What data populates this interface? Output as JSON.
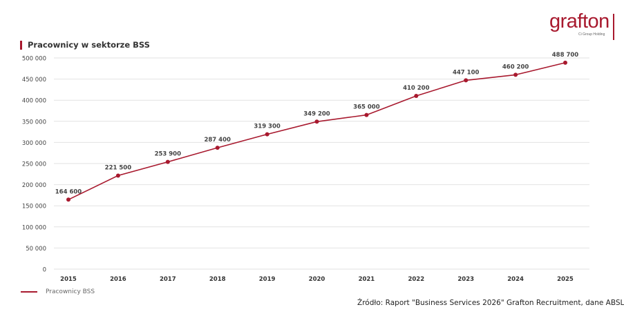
{
  "logo": {
    "name": "grafton",
    "subtitle": "Ci Group Holding"
  },
  "colors": {
    "accent": "#a8192e",
    "line": "#a8192e",
    "grid": "#e2e2e2",
    "text": "#333333"
  },
  "chart_data": {
    "type": "line",
    "title": "Pracownicy w sektorze BSS",
    "xlabel": "",
    "ylabel": "",
    "x": [
      "2015",
      "2016",
      "2017",
      "2018",
      "2019",
      "2020",
      "2021",
      "2022",
      "2023",
      "2024",
      "2025"
    ],
    "series": [
      {
        "name": "Pracownicy BSS",
        "values": [
          164600,
          221500,
          253900,
          287400,
          319300,
          349200,
          365000,
          410200,
          447100,
          460200,
          488700
        ],
        "labels": [
          "164 600",
          "221 500",
          "253 900",
          "287 400",
          "319 300",
          "349 200",
          "365 000",
          "410 200",
          "447 100",
          "460 200",
          "488 700"
        ]
      }
    ],
    "ylim": [
      0,
      500000
    ],
    "yticks": [
      0,
      50000,
      100000,
      150000,
      200000,
      250000,
      300000,
      350000,
      400000,
      450000,
      500000
    ],
    "ytick_labels": [
      "0",
      "50 000",
      "100 000",
      "150 000",
      "200 000",
      "250 000",
      "300 000",
      "350 000",
      "400 000",
      "450 000",
      "500 000"
    ],
    "grid": true,
    "legend_position": "bottom-left"
  },
  "legend": {
    "label": "Pracownicy BSS"
  },
  "source": "Źródło: Raport \"Business Services 2026\" Grafton Recruitment, dane ABSL"
}
